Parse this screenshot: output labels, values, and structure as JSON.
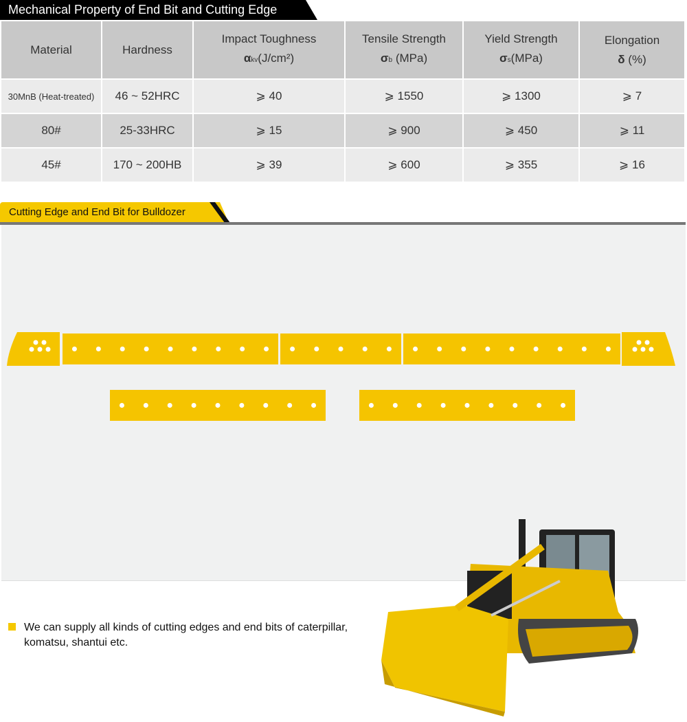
{
  "section1": {
    "title": "Mechanical Property of End Bit and Cutting Edge"
  },
  "table": {
    "headers": [
      {
        "line1": "Material",
        "line2": ""
      },
      {
        "line1": "Hardness",
        "line2": ""
      },
      {
        "line1": "Impact Toughness",
        "sym": "α",
        "sub": "kv",
        "unit": "(J/cm²)"
      },
      {
        "line1": "Tensile Strength",
        "sym": "σ",
        "sub": "b",
        "unit": "(MPa)"
      },
      {
        "line1": "Yield Strength",
        "sym": "σ",
        "sub": "s",
        "unit": "(MPa)"
      },
      {
        "line1": "Elongation",
        "sym": "δ",
        "sub": "",
        "unit": "(%)"
      }
    ],
    "rows": [
      [
        "30MnB (Heat-treated)",
        "46 ~ 52HRC",
        "⩾ 40",
        "⩾ 1550",
        "⩾ 1300",
        "⩾ 7"
      ],
      [
        "80#",
        "25-33HRC",
        "⩾ 15",
        "⩾ 900",
        "⩾ 450",
        "⩾ 11"
      ],
      [
        "45#",
        "170 ~ 200HB",
        "⩾ 39",
        "⩾ 600",
        "⩾ 355",
        "⩾ 16"
      ]
    ]
  },
  "section2": {
    "title": "Cutting Edge and End Bit for Bulldozer"
  },
  "note": "We can supply all kinds of cutting edges and end bits of caterpillar, komatsu, shantui etc.",
  "colors": {
    "accent": "#f5c800",
    "header_bg": "#c8c8c8",
    "title_bg": "#000000"
  }
}
